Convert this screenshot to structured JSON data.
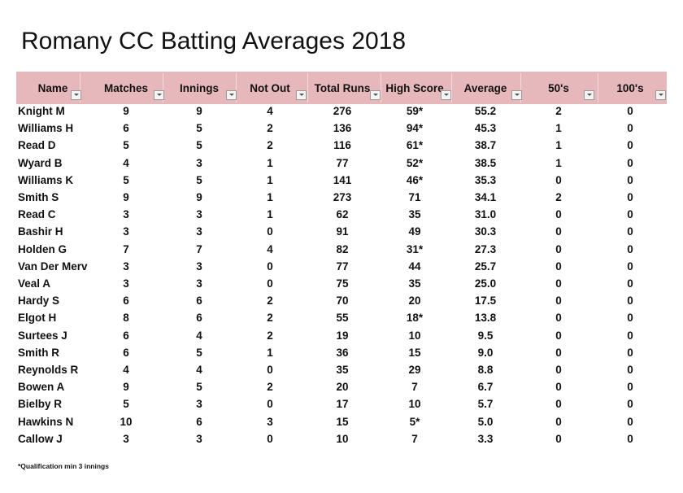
{
  "title": "Romany CC Batting Averages 2018",
  "table": {
    "header": [
      "Name",
      "Matches",
      "Innings",
      "Not Out",
      "Total Runs",
      "High Score",
      "Average",
      "50's",
      "100's"
    ],
    "rows": [
      [
        "Knight M",
        "9",
        "9",
        "4",
        "276",
        "59*",
        "55.2",
        "2",
        "0"
      ],
      [
        "Williams H",
        "6",
        "5",
        "2",
        "136",
        "94*",
        "45.3",
        "1",
        "0"
      ],
      [
        "Read D",
        "5",
        "5",
        "2",
        "116",
        "61*",
        "38.7",
        "1",
        "0"
      ],
      [
        "Wyard B",
        "4",
        "3",
        "1",
        "77",
        "52*",
        "38.5",
        "1",
        "0"
      ],
      [
        "Williams K",
        "5",
        "5",
        "1",
        "141",
        "46*",
        "35.3",
        "0",
        "0"
      ],
      [
        "Smith S",
        "9",
        "9",
        "1",
        "273",
        "71",
        "34.1",
        "2",
        "0"
      ],
      [
        "Read C",
        "3",
        "3",
        "1",
        "62",
        "35",
        "31.0",
        "0",
        "0"
      ],
      [
        "Bashir H",
        "3",
        "3",
        "0",
        "91",
        "49",
        "30.3",
        "0",
        "0"
      ],
      [
        "Holden G",
        "7",
        "7",
        "4",
        "82",
        "31*",
        "27.3",
        "0",
        "0"
      ],
      [
        "Van Der Merv",
        "3",
        "3",
        "0",
        "77",
        "44",
        "25.7",
        "0",
        "0"
      ],
      [
        "Veal A",
        "3",
        "3",
        "0",
        "75",
        "35",
        "25.0",
        "0",
        "0"
      ],
      [
        "Hardy S",
        "6",
        "6",
        "2",
        "70",
        "20",
        "17.5",
        "0",
        "0"
      ],
      [
        "Elgot H",
        "8",
        "6",
        "2",
        "55",
        "18*",
        "13.8",
        "0",
        "0"
      ],
      [
        "Surtees J",
        "6",
        "4",
        "2",
        "19",
        "10",
        "9.5",
        "0",
        "0"
      ],
      [
        "Smith R",
        "6",
        "5",
        "1",
        "36",
        "15",
        "9.0",
        "0",
        "0"
      ],
      [
        "Reynolds R",
        "4",
        "4",
        "0",
        "35",
        "29",
        "8.8",
        "0",
        "0"
      ],
      [
        "Bowen A",
        "9",
        "5",
        "2",
        "20",
        "7",
        "6.7",
        "0",
        "0"
      ],
      [
        "Bielby R",
        "5",
        "3",
        "0",
        "17",
        "10",
        "5.7",
        "0",
        "0"
      ],
      [
        "Hawkins N",
        "10",
        "6",
        "3",
        "15",
        "5*",
        "5.0",
        "0",
        "0"
      ],
      [
        "Callow J",
        "3",
        "3",
        "0",
        "10",
        "7",
        "3.3",
        "0",
        "0"
      ]
    ]
  },
  "footnote": "*Qualification min 3 innings"
}
